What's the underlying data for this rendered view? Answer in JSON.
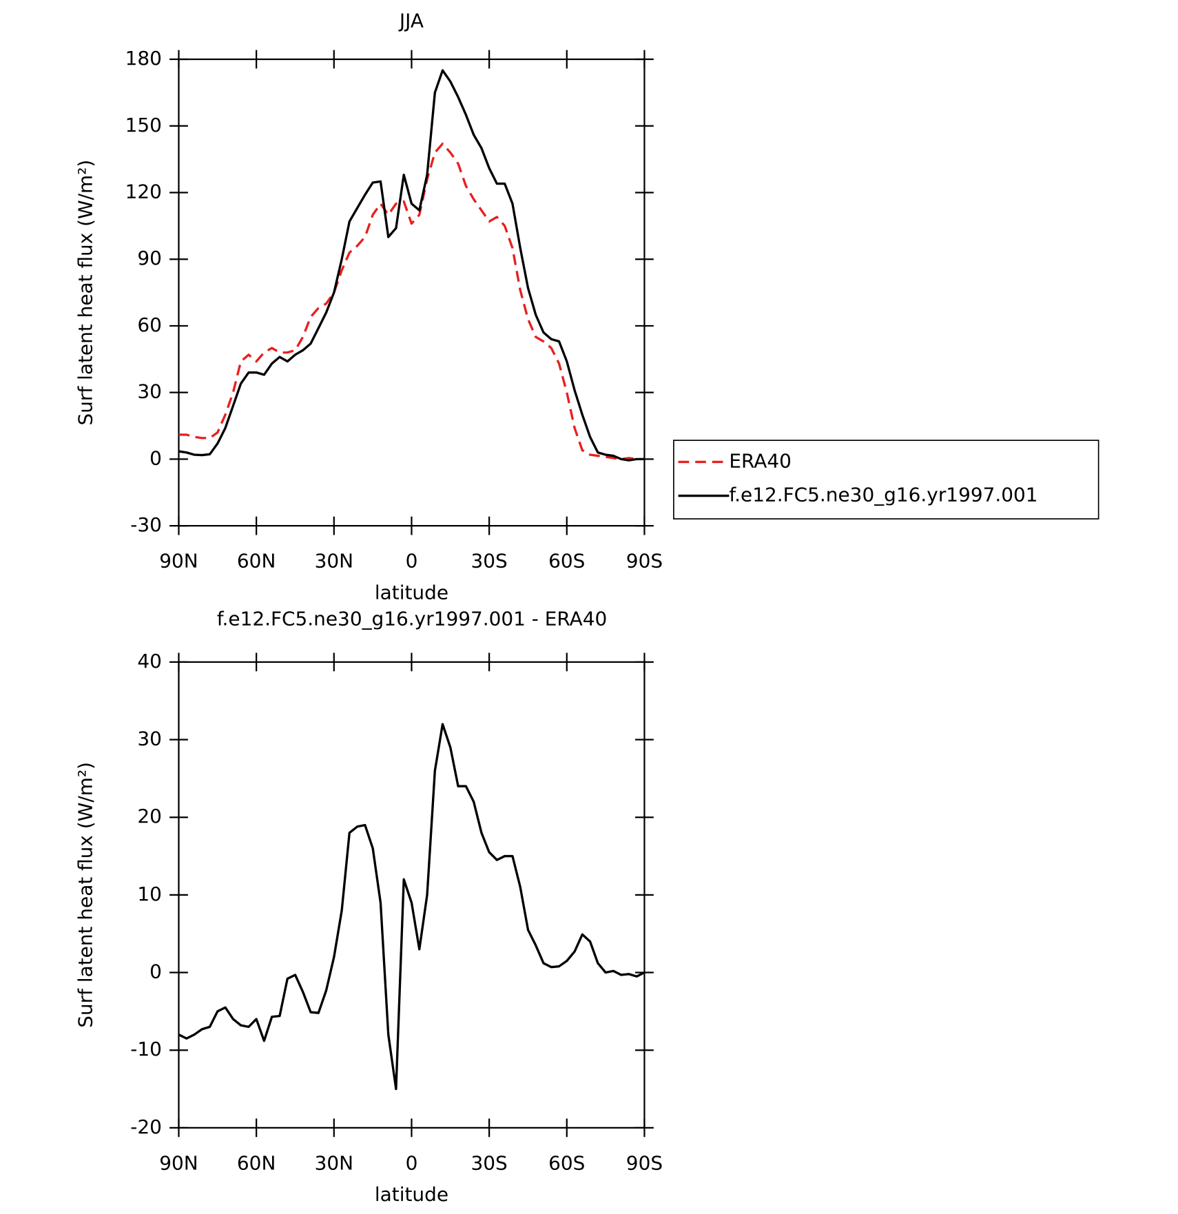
{
  "chart_data": [
    {
      "type": "line",
      "title": "JJA",
      "xlabel": "latitude",
      "ylabel": "Surf latent heat flux (W/m²)",
      "x": [
        90,
        87,
        84,
        81,
        78,
        75,
        72,
        69,
        66,
        63,
        60,
        57,
        54,
        51,
        48,
        45,
        42,
        39,
        36,
        33,
        30,
        27,
        24,
        21,
        18,
        15,
        12,
        9,
        6,
        3,
        0,
        -3,
        -6,
        -9,
        -12,
        -15,
        -18,
        -21,
        -24,
        -27,
        -30,
        -33,
        -36,
        -39,
        -42,
        -45,
        -48,
        -51,
        -54,
        -57,
        -60,
        -63,
        -66,
        -69,
        -72,
        -75,
        -78,
        -81,
        -84,
        -87,
        -90
      ],
      "series": [
        {
          "name": "ERA40",
          "color": "#e8201e",
          "line_style": "dashed",
          "values": [
            11,
            11,
            10,
            9.5,
            9.5,
            12,
            20,
            30,
            44,
            47,
            44,
            48,
            50,
            48,
            48,
            49,
            55,
            64,
            68,
            70,
            75,
            85,
            93,
            96,
            100,
            110,
            115,
            110,
            115,
            116,
            106,
            110,
            126,
            138,
            142,
            138,
            133,
            123,
            117,
            112,
            107,
            109,
            105,
            95,
            76,
            63,
            55,
            53,
            50,
            43,
            30,
            14,
            4,
            2,
            1.5,
            1,
            0.5,
            0,
            0.5,
            0,
            0
          ]
        },
        {
          "name": "f.e12.FC5.ne30_g16.yr1997.001",
          "color": "#000000",
          "line_style": "solid",
          "values": [
            3.5,
            3,
            2,
            1.8,
            2.2,
            7,
            14,
            24,
            34,
            39,
            39,
            38,
            43,
            46,
            44,
            47,
            49,
            52,
            59,
            66,
            75,
            90,
            107,
            113,
            119,
            124.5,
            125,
            100,
            104,
            128,
            115,
            112,
            128,
            165,
            175,
            170,
            163,
            155,
            146,
            140,
            131,
            124,
            124,
            115,
            95,
            77,
            65,
            57,
            54,
            53,
            44,
            31,
            20,
            10,
            3,
            2,
            1.5,
            0,
            -0.5,
            0,
            0
          ]
        }
      ],
      "xlim": [
        90,
        -90
      ],
      "xticks": [
        {
          "value": 90,
          "label": "90N"
        },
        {
          "value": 60,
          "label": "60N"
        },
        {
          "value": 30,
          "label": "30N"
        },
        0,
        {
          "value": -30,
          "label": "30S"
        },
        {
          "value": -60,
          "label": "60S"
        },
        {
          "value": -90,
          "label": "90S"
        }
      ],
      "ylim": [
        -30,
        180
      ],
      "yticks": [
        -30,
        0,
        30,
        60,
        90,
        120,
        150,
        180
      ],
      "legend": "right"
    },
    {
      "type": "line",
      "title": "f.e12.FC5.ne30_g16.yr1997.001 - ERA40",
      "xlabel": "latitude",
      "ylabel": "Surf latent heat flux (W/m²)",
      "x": [
        90,
        87,
        84,
        81,
        78,
        75,
        72,
        69,
        66,
        63,
        60,
        57,
        54,
        51,
        48,
        45,
        42,
        39,
        36,
        33,
        30,
        27,
        24,
        21,
        18,
        15,
        12,
        9,
        6,
        3,
        0,
        -3,
        -6,
        -9,
        -12,
        -15,
        -18,
        -21,
        -24,
        -27,
        -30,
        -33,
        -36,
        -39,
        -42,
        -45,
        -48,
        -51,
        -54,
        -57,
        -60,
        -63,
        -66,
        -69,
        -72,
        -75,
        -78,
        -81,
        -84,
        -87,
        -90
      ],
      "color": "#000000",
      "values": [
        -8,
        -8.5,
        -8,
        -7.3,
        -7,
        -5,
        -4.5,
        -6,
        -6.8,
        -7,
        -6,
        -8.8,
        -5.7,
        -5.6,
        -0.8,
        -0.3,
        -2.5,
        -5.1,
        -5.2,
        -2.3,
        2,
        8,
        18,
        18.8,
        19,
        16,
        9,
        -8,
        -15,
        12,
        9,
        3,
        10,
        26,
        32,
        29,
        24,
        24,
        22,
        18,
        15.5,
        14.5,
        15,
        15,
        11,
        5.5,
        3.5,
        1.2,
        0.7,
        0.8,
        1.5,
        2.7,
        4.9,
        4,
        1.2,
        0,
        0.2,
        -0.3,
        -0.2,
        -0.5,
        0
      ],
      "xlim": [
        90,
        -90
      ],
      "xticks": [
        {
          "value": 90,
          "label": "90N"
        },
        {
          "value": 60,
          "label": "60N"
        },
        {
          "value": 30,
          "label": "30N"
        },
        0,
        {
          "value": -30,
          "label": "30S"
        },
        {
          "value": -60,
          "label": "60S"
        },
        {
          "value": -90,
          "label": "90S"
        }
      ],
      "ylim": [
        -20,
        40
      ],
      "yticks": [
        -20,
        -10,
        0,
        10,
        20,
        30,
        40
      ]
    }
  ]
}
